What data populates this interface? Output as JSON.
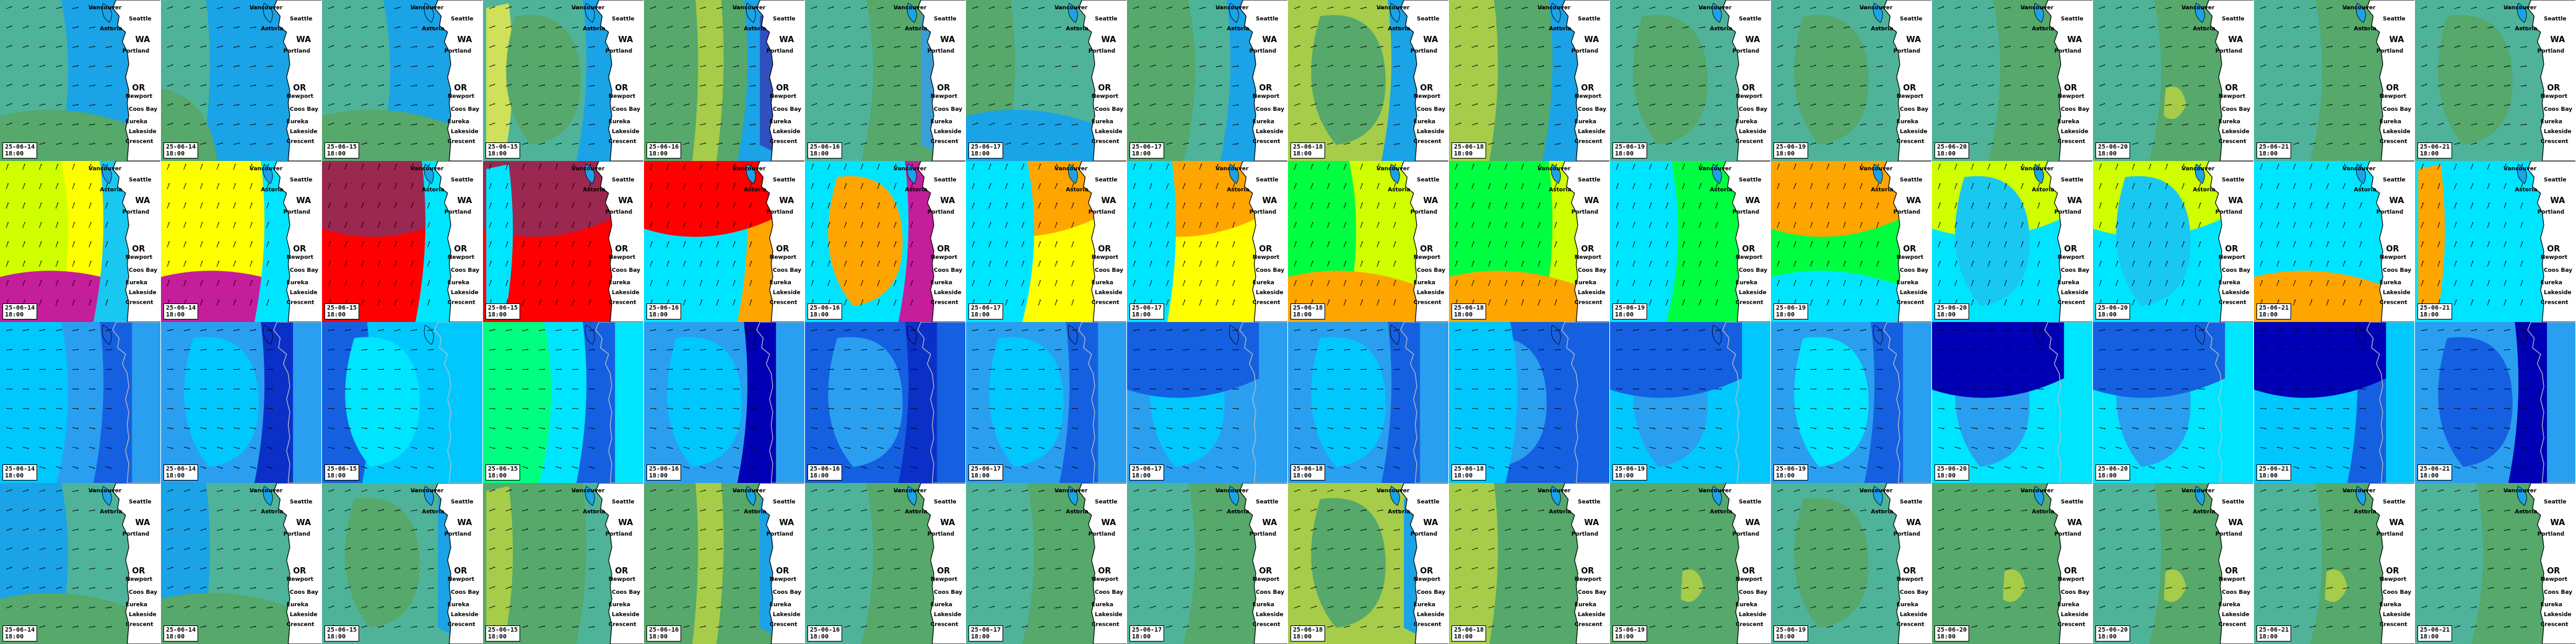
{
  "rows": [
    {
      "name": "wind-speed-a",
      "palette": [
        "#1aa3e6",
        "#3b9fd6",
        "#4fb39a",
        "#56a86b",
        "#6fb04a",
        "#a6cc4a",
        "#cfe05a"
      ],
      "tiles": [
        {
          "date": "25-06-14",
          "time": "18:00",
          "base": "#1aa3e6",
          "blobs": [
            [
              "#4fb39a",
              "left"
            ],
            [
              "#56a86b",
              "bottom"
            ]
          ]
        },
        {
          "date": "25-06-14",
          "time": "18:00",
          "base": "#1aa3e6",
          "blobs": [
            [
              "#4fb39a",
              "leftband"
            ],
            [
              "#56a86b",
              "bottomleft"
            ]
          ]
        },
        {
          "date": "25-06-15",
          "time": "18:00",
          "base": "#1aa3e6",
          "blobs": [
            [
              "#4fb39a",
              "left"
            ],
            [
              "#56a86b",
              "bottom"
            ]
          ]
        },
        {
          "date": "25-06-15",
          "time": "18:00",
          "base": "#4fb39a",
          "blobs": [
            [
              "#cfe05a",
              "leftstripe"
            ],
            [
              "#56a86b",
              "center"
            ],
            [
              "#1aa3e6",
              "right"
            ]
          ]
        },
        {
          "date": "25-06-16",
          "time": "18:00",
          "base": "#56a86b",
          "blobs": [
            [
              "#a6cc4a",
              "centerstripe"
            ],
            [
              "#1aa3e6",
              "right"
            ],
            [
              "#3050c0",
              "rightedge"
            ]
          ]
        },
        {
          "date": "25-06-16",
          "time": "18:00",
          "base": "#56a86b",
          "blobs": [
            [
              "#4fb39a",
              "left"
            ],
            [
              "#3b9fd6",
              "rightedge"
            ]
          ]
        },
        {
          "date": "25-06-17",
          "time": "18:00",
          "base": "#4fb39a",
          "blobs": [
            [
              "#56a86b",
              "leftband"
            ],
            [
              "#1aa3e6",
              "bottom"
            ]
          ]
        },
        {
          "date": "25-06-17",
          "time": "18:00",
          "base": "#4fb39a",
          "blobs": [
            [
              "#1aa3e6",
              "right"
            ],
            [
              "#56a86b",
              "left"
            ]
          ]
        },
        {
          "date": "25-06-18",
          "time": "18:00",
          "base": "#a6cc4a",
          "blobs": [
            [
              "#56a86b",
              "center"
            ],
            [
              "#1aa3e6",
              "right"
            ]
          ]
        },
        {
          "date": "25-06-18",
          "time": "18:00",
          "base": "#56a86b",
          "blobs": [
            [
              "#a6cc4a",
              "leftband"
            ],
            [
              "#1aa3e6",
              "right"
            ]
          ]
        },
        {
          "date": "25-06-19",
          "time": "18:00",
          "base": "#4fb39a",
          "blobs": [
            [
              "#56a86b",
              "center"
            ]
          ]
        },
        {
          "date": "25-06-19",
          "time": "18:00",
          "base": "#4fb39a",
          "blobs": [
            [
              "#56a86b",
              "center"
            ]
          ]
        },
        {
          "date": "25-06-20",
          "time": "18:00",
          "base": "#56a86b",
          "blobs": [
            [
              "#4fb39a",
              "left"
            ]
          ]
        },
        {
          "date": "25-06-20",
          "time": "18:00",
          "base": "#56a86b",
          "blobs": [
            [
              "#a6cc4a",
              "spot"
            ],
            [
              "#4fb39a",
              "left"
            ]
          ]
        },
        {
          "date": "25-06-21",
          "time": "18:00",
          "base": "#56a86b",
          "blobs": [
            [
              "#4fb39a",
              "left"
            ]
          ]
        },
        {
          "date": "25-06-21",
          "time": "18:00",
          "base": "#4fb39a",
          "blobs": [
            [
              "#56a86b",
              "center"
            ]
          ]
        }
      ]
    },
    {
      "name": "wind-direction-b",
      "palette": [
        "#00e5ff",
        "#19c8f0",
        "#ffff00",
        "#ffa500",
        "#ff0000",
        "#9b2850",
        "#c41e9a",
        "#00ff40",
        "#cfff00"
      ],
      "tiles": [
        {
          "date": "25-06-14",
          "time": "18:00",
          "base": "#ffff00",
          "blobs": [
            [
              "#cfff00",
              "left"
            ],
            [
              "#c41e9a",
              "bottom"
            ],
            [
              "#19c8f0",
              "right"
            ]
          ]
        },
        {
          "date": "25-06-14",
          "time": "18:00",
          "base": "#ffff00",
          "blobs": [
            [
              "#c41e9a",
              "bottom"
            ],
            [
              "#00e5ff",
              "right"
            ]
          ]
        },
        {
          "date": "25-06-15",
          "time": "18:00",
          "base": "#ff0000",
          "blobs": [
            [
              "#9b2850",
              "top"
            ],
            [
              "#00e5ff",
              "right"
            ]
          ]
        },
        {
          "date": "25-06-15",
          "time": "18:00",
          "base": "#ff0000",
          "blobs": [
            [
              "#9b2850",
              "top"
            ],
            [
              "#00e5ff",
              "leftstripe"
            ]
          ]
        },
        {
          "date": "25-06-16",
          "time": "18:00",
          "base": "#00e5ff",
          "blobs": [
            [
              "#ffa500",
              "right"
            ],
            [
              "#ff0000",
              "top"
            ]
          ]
        },
        {
          "date": "25-06-16",
          "time": "18:00",
          "base": "#00e5ff",
          "blobs": [
            [
              "#ffa500",
              "center"
            ],
            [
              "#c41e9a",
              "right"
            ]
          ]
        },
        {
          "date": "25-06-17",
          "time": "18:00",
          "base": "#ffff00",
          "blobs": [
            [
              "#ffa500",
              "top"
            ],
            [
              "#00e5ff",
              "left"
            ]
          ]
        },
        {
          "date": "25-06-17",
          "time": "18:00",
          "base": "#ffff00",
          "blobs": [
            [
              "#ffa500",
              "top"
            ],
            [
              "#00e5ff",
              "leftband"
            ]
          ]
        },
        {
          "date": "25-06-18",
          "time": "18:00",
          "base": "#cfff00",
          "blobs": [
            [
              "#00ff40",
              "left"
            ],
            [
              "#ffa500",
              "bottom"
            ]
          ]
        },
        {
          "date": "25-06-18",
          "time": "18:00",
          "base": "#00ff40",
          "blobs": [
            [
              "#cfff00",
              "right"
            ],
            [
              "#ffa500",
              "bottom"
            ]
          ]
        },
        {
          "date": "25-06-19",
          "time": "18:00",
          "base": "#00ff40",
          "blobs": [
            [
              "#00e5ff",
              "left"
            ]
          ]
        },
        {
          "date": "25-06-19",
          "time": "18:00",
          "base": "#00ff40",
          "blobs": [
            [
              "#ffa500",
              "top"
            ],
            [
              "#00e5ff",
              "bottom"
            ]
          ]
        },
        {
          "date": "25-06-20",
          "time": "18:00",
          "base": "#00e5ff",
          "blobs": [
            [
              "#cfff00",
              "top"
            ],
            [
              "#19c8f0",
              "center"
            ]
          ]
        },
        {
          "date": "25-06-20",
          "time": "18:00",
          "base": "#00e5ff",
          "blobs": [
            [
              "#cfff00",
              "top"
            ],
            [
              "#19c8f0",
              "center"
            ]
          ]
        },
        {
          "date": "25-06-21",
          "time": "18:00",
          "base": "#00e5ff",
          "blobs": [
            [
              "#ffa500",
              "bottom"
            ]
          ]
        },
        {
          "date": "25-06-21",
          "time": "18:00",
          "base": "#00e5ff",
          "blobs": [
            [
              "#ffa500",
              "leftstripe"
            ]
          ]
        }
      ]
    },
    {
      "name": "wave-height-c",
      "palette": [
        "#00c8ff",
        "#00e5ff",
        "#1560e0",
        "#0a30c8",
        "#0000b4",
        "#2a9ff0",
        "#00ff80"
      ],
      "tiles": [
        {
          "date": "25-06-14",
          "time": "18:00",
          "base": "#2a9ff0",
          "blobs": [
            [
              "#1560e0",
              "right"
            ],
            [
              "#00c8ff",
              "left"
            ]
          ]
        },
        {
          "date": "25-06-14",
          "time": "18:00",
          "base": "#2a9ff0",
          "blobs": [
            [
              "#0a30c8",
              "right"
            ],
            [
              "#00c8ff",
              "center"
            ]
          ]
        },
        {
          "date": "25-06-15",
          "time": "18:00",
          "base": "#00c8ff",
          "blobs": [
            [
              "#1560e0",
              "leftband"
            ],
            [
              "#00e5ff",
              "center"
            ]
          ]
        },
        {
          "date": "25-06-15",
          "time": "18:00",
          "base": "#00e5ff",
          "blobs": [
            [
              "#00ff80",
              "left"
            ],
            [
              "#1560e0",
              "right"
            ]
          ]
        },
        {
          "date": "25-06-16",
          "time": "18:00",
          "base": "#2a9ff0",
          "blobs": [
            [
              "#00c8ff",
              "center"
            ],
            [
              "#0000b4",
              "right"
            ]
          ]
        },
        {
          "date": "25-06-16",
          "time": "18:00",
          "base": "#1560e0",
          "blobs": [
            [
              "#2a9ff0",
              "center"
            ],
            [
              "#0a30c8",
              "right"
            ]
          ]
        },
        {
          "date": "25-06-17",
          "time": "18:00",
          "base": "#2a9ff0",
          "blobs": [
            [
              "#00c8ff",
              "center"
            ],
            [
              "#1560e0",
              "right"
            ]
          ]
        },
        {
          "date": "25-06-17",
          "time": "18:00",
          "base": "#2a9ff0",
          "blobs": [
            [
              "#00c8ff",
              "center"
            ],
            [
              "#1560e0",
              "top"
            ]
          ]
        },
        {
          "date": "25-06-18",
          "time": "18:00",
          "base": "#2a9ff0",
          "blobs": [
            [
              "#00c8ff",
              "center"
            ],
            [
              "#1560e0",
              "right"
            ]
          ]
        },
        {
          "date": "25-06-18",
          "time": "18:00",
          "base": "#1560e0",
          "blobs": [
            [
              "#2a9ff0",
              "center"
            ],
            [
              "#00c8ff",
              "left"
            ]
          ]
        },
        {
          "date": "25-06-19",
          "time": "18:00",
          "base": "#00c8ff",
          "blobs": [
            [
              "#2a9ff0",
              "center"
            ],
            [
              "#1560e0",
              "top"
            ]
          ]
        },
        {
          "date": "25-06-19",
          "time": "18:00",
          "base": "#2a9ff0",
          "blobs": [
            [
              "#00e5ff",
              "center"
            ],
            [
              "#1560e0",
              "right"
            ]
          ]
        },
        {
          "date": "25-06-20",
          "time": "18:00",
          "base": "#00e5ff",
          "blobs": [
            [
              "#2a9ff0",
              "center"
            ],
            [
              "#0000b4",
              "top"
            ]
          ]
        },
        {
          "date": "25-06-20",
          "time": "18:00",
          "base": "#00e5ff",
          "blobs": [
            [
              "#2a9ff0",
              "center"
            ],
            [
              "#1560e0",
              "top"
            ]
          ]
        },
        {
          "date": "25-06-21",
          "time": "18:00",
          "base": "#00c8ff",
          "blobs": [
            [
              "#1560e0",
              "right"
            ],
            [
              "#0000b4",
              "top"
            ]
          ]
        },
        {
          "date": "25-06-21",
          "time": "18:00",
          "base": "#2a9ff0",
          "blobs": [
            [
              "#0000b4",
              "right"
            ],
            [
              "#1560e0",
              "center"
            ]
          ]
        }
      ]
    },
    {
      "name": "wind-speed-d",
      "palette": [
        "#4fb39a",
        "#56a86b",
        "#a6cc4a",
        "#1aa3e6",
        "#6fb04a"
      ],
      "tiles": [
        {
          "date": "25-06-14",
          "time": "18:00",
          "base": "#4fb39a",
          "blobs": [
            [
              "#1aa3e6",
              "left"
            ],
            [
              "#56a86b",
              "bottom"
            ]
          ]
        },
        {
          "date": "25-06-14",
          "time": "18:00",
          "base": "#4fb39a",
          "blobs": [
            [
              "#1aa3e6",
              "leftband"
            ],
            [
              "#56a86b",
              "bottom"
            ]
          ]
        },
        {
          "date": "25-06-15",
          "time": "18:00",
          "base": "#4fb39a",
          "blobs": [
            [
              "#56a86b",
              "center"
            ],
            [
              "#1aa3e6",
              "rightedge"
            ]
          ]
        },
        {
          "date": "25-06-15",
          "time": "18:00",
          "base": "#56a86b",
          "blobs": [
            [
              "#a6cc4a",
              "leftstripe"
            ],
            [
              "#4fb39a",
              "right"
            ]
          ]
        },
        {
          "date": "25-06-16",
          "time": "18:00",
          "base": "#56a86b",
          "blobs": [
            [
              "#a6cc4a",
              "centerstripe"
            ],
            [
              "#1aa3e6",
              "rightedge"
            ]
          ]
        },
        {
          "date": "25-06-16",
          "time": "18:00",
          "base": "#56a86b",
          "blobs": [
            [
              "#4fb39a",
              "left"
            ]
          ]
        },
        {
          "date": "25-06-17",
          "time": "18:00",
          "base": "#56a86b",
          "blobs": [
            [
              "#4fb39a",
              "left"
            ]
          ]
        },
        {
          "date": "25-06-17",
          "time": "18:00",
          "base": "#56a86b",
          "blobs": [
            [
              "#4fb39a",
              "left"
            ]
          ]
        },
        {
          "date": "25-06-18",
          "time": "18:00",
          "base": "#a6cc4a",
          "blobs": [
            [
              "#56a86b",
              "center"
            ],
            [
              "#1aa3e6",
              "rightedge"
            ]
          ]
        },
        {
          "date": "25-06-18",
          "time": "18:00",
          "base": "#56a86b",
          "blobs": [
            [
              "#a6cc4a",
              "leftband"
            ]
          ]
        },
        {
          "date": "25-06-19",
          "time": "18:00",
          "base": "#56a86b",
          "blobs": [
            [
              "#a6cc4a",
              "spot"
            ]
          ]
        },
        {
          "date": "25-06-19",
          "time": "18:00",
          "base": "#4fb39a",
          "blobs": [
            [
              "#56a86b",
              "center"
            ]
          ]
        },
        {
          "date": "25-06-20",
          "time": "18:00",
          "base": "#56a86b",
          "blobs": [
            [
              "#a6cc4a",
              "spot"
            ]
          ]
        },
        {
          "date": "25-06-20",
          "time": "18:00",
          "base": "#56a86b",
          "blobs": [
            [
              "#a6cc4a",
              "spot"
            ],
            [
              "#4fb39a",
              "left"
            ]
          ]
        },
        {
          "date": "25-06-21",
          "time": "18:00",
          "base": "#56a86b",
          "blobs": [
            [
              "#a6cc4a",
              "spot"
            ],
            [
              "#4fb39a",
              "left"
            ]
          ]
        },
        {
          "date": "25-06-21",
          "time": "18:00",
          "base": "#56a86b",
          "blobs": [
            [
              "#4fb39a",
              "left"
            ]
          ]
        }
      ]
    }
  ],
  "coast_labels": [
    "Vancouver",
    "Seattle",
    "WA",
    "Portland",
    "OR",
    "Newport",
    "Coos Bay",
    "Eureka",
    "Lakeside",
    "Crescent",
    "Astoria"
  ],
  "colors": {
    "land": "#ffffff",
    "coast": "#000000",
    "arrow": "#000000",
    "border": "#ffffff"
  }
}
